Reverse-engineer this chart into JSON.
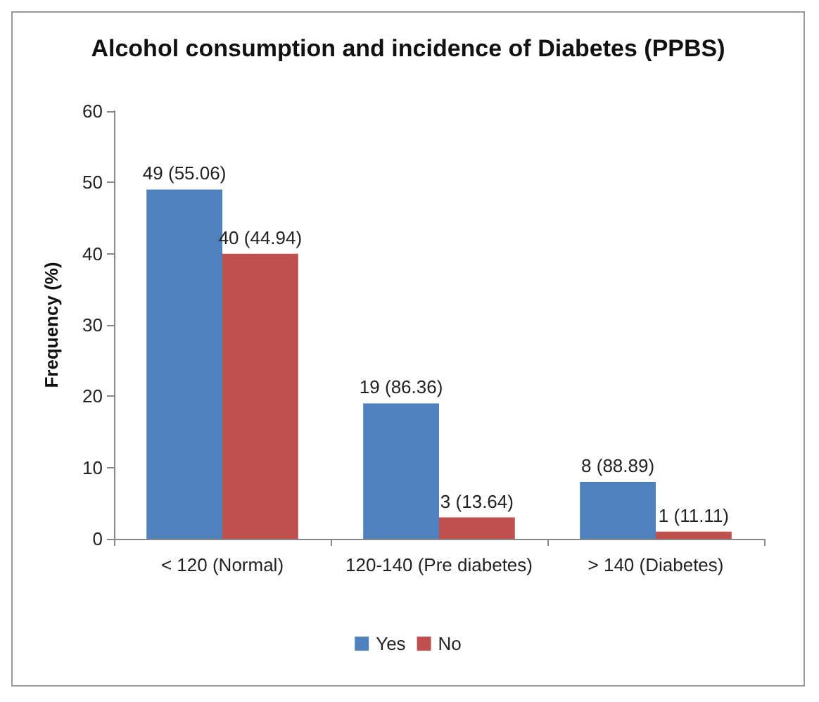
{
  "chart_data": {
    "type": "bar",
    "title": "Alcohol consumption and incidence of Diabetes (PPBS)",
    "ylabel": "Frequency (%)",
    "categories": [
      "< 120 (Normal)",
      "120-140 (Pre diabetes)",
      "> 140 (Diabetes)"
    ],
    "series": [
      {
        "name": "Yes",
        "color": "#4f81bd",
        "values": [
          49,
          19,
          8
        ],
        "value_labels": [
          "49 (55.06)",
          "19 (86.36)",
          "8 (88.89)"
        ]
      },
      {
        "name": "No",
        "color": "#c0504d",
        "values": [
          40,
          3,
          1
        ],
        "value_labels": [
          "40 (44.94)",
          "3 (13.64)",
          "1 (11.11)"
        ]
      }
    ],
    "ylim": [
      0,
      60
    ],
    "yticks": [
      0,
      10,
      20,
      30,
      40,
      50,
      60
    ],
    "grid": false,
    "legend": "bottom"
  }
}
